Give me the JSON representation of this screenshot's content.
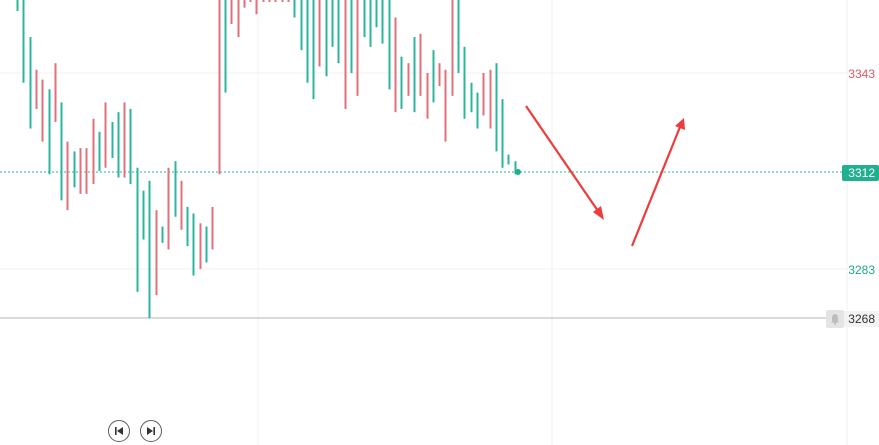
{
  "chart_data": {
    "type": "candlestick",
    "bar_style": "ohlc-vertical-line",
    "y_ticks": [
      "3343",
      "3283"
    ],
    "grid": true,
    "current_price": "3312",
    "reference_price": "3268",
    "colors": {
      "up": "#e0727a",
      "down": "#2ab59c",
      "arrow": "#ef3b3b",
      "current_price_bg": "#20b08f",
      "reference_line": "#b5b5b5",
      "grid": "#f2f2f2",
      "text_up": "#d85a65",
      "text_down": "#20a88f"
    },
    "ylim": [
      3240,
      3390
    ],
    "bars": [
      {
        "high": 3395,
        "low": 3362,
        "dir": "down"
      },
      {
        "high": 3373,
        "low": 3340,
        "dir": "down"
      },
      {
        "high": 3354,
        "low": 3326,
        "dir": "down"
      },
      {
        "high": 3344,
        "low": 3332,
        "dir": "up"
      },
      {
        "high": 3341,
        "low": 3322,
        "dir": "up"
      },
      {
        "high": 3338,
        "low": 3312,
        "dir": "down"
      },
      {
        "high": 3346,
        "low": 3328,
        "dir": "up"
      },
      {
        "high": 3334,
        "low": 3304,
        "dir": "down"
      },
      {
        "high": 3322,
        "low": 3301,
        "dir": "up"
      },
      {
        "high": 3319,
        "low": 3308,
        "dir": "down"
      },
      {
        "high": 3320,
        "low": 3306,
        "dir": "up"
      },
      {
        "high": 3320,
        "low": 3306,
        "dir": "up"
      },
      {
        "high": 3329,
        "low": 3309,
        "dir": "up"
      },
      {
        "high": 3325,
        "low": 3313,
        "dir": "down"
      },
      {
        "high": 3334,
        "low": 3314,
        "dir": "up"
      },
      {
        "high": 3328,
        "low": 3317,
        "dir": "down"
      },
      {
        "high": 3331,
        "low": 3311,
        "dir": "down"
      },
      {
        "high": 3334,
        "low": 3311,
        "dir": "up"
      },
      {
        "high": 3332,
        "low": 3309,
        "dir": "down"
      },
      {
        "high": 3314,
        "low": 3276,
        "dir": "down"
      },
      {
        "high": 3307,
        "low": 3292,
        "dir": "down"
      },
      {
        "high": 3310,
        "low": 3268,
        "dir": "down"
      },
      {
        "high": 3301,
        "low": 3275,
        "dir": "up"
      },
      {
        "high": 3296,
        "low": 3291,
        "dir": "down"
      },
      {
        "high": 3314,
        "low": 3289,
        "dir": "up"
      },
      {
        "high": 3316,
        "low": 3299,
        "dir": "down"
      },
      {
        "high": 3310,
        "low": 3295,
        "dir": "up"
      },
      {
        "high": 3302,
        "low": 3290,
        "dir": "down"
      },
      {
        "high": 3300,
        "low": 3281,
        "dir": "down"
      },
      {
        "high": 3297,
        "low": 3283,
        "dir": "up"
      },
      {
        "high": 3296,
        "low": 3285,
        "dir": "down"
      },
      {
        "high": 3302,
        "low": 3289,
        "dir": "up"
      },
      {
        "high": 3377,
        "low": 3312,
        "dir": "up"
      },
      {
        "high": 3390,
        "low": 3337,
        "dir": "down"
      },
      {
        "high": 3388,
        "low": 3358,
        "dir": "up"
      },
      {
        "high": 3384,
        "low": 3354,
        "dir": "up"
      },
      {
        "high": 3394,
        "low": 3363,
        "dir": "up"
      },
      {
        "high": 3395,
        "low": 3375,
        "dir": "up"
      },
      {
        "high": 3395,
        "low": 3361,
        "dir": "up"
      },
      {
        "high": 3395,
        "low": 3374,
        "dir": "up"
      },
      {
        "high": 3395,
        "low": 3385,
        "dir": "up"
      },
      {
        "high": 3395,
        "low": 3386,
        "dir": "up"
      },
      {
        "high": 3395,
        "low": 3381,
        "dir": "up"
      },
      {
        "high": 3395,
        "low": 3376,
        "dir": "up"
      },
      {
        "high": 3395,
        "low": 3360,
        "dir": "down"
      },
      {
        "high": 3391,
        "low": 3350,
        "dir": "down"
      },
      {
        "high": 3385,
        "low": 3340,
        "dir": "down"
      },
      {
        "high": 3386,
        "low": 3335,
        "dir": "down"
      },
      {
        "high": 3384,
        "low": 3345,
        "dir": "up"
      },
      {
        "high": 3384,
        "low": 3342,
        "dir": "down"
      },
      {
        "high": 3381,
        "low": 3351,
        "dir": "down"
      },
      {
        "high": 3383,
        "low": 3346,
        "dir": "down"
      },
      {
        "high": 3384,
        "low": 3332,
        "dir": "up"
      },
      {
        "high": 3376,
        "low": 3343,
        "dir": "down"
      },
      {
        "high": 3378,
        "low": 3336,
        "dir": "up"
      },
      {
        "high": 3395,
        "low": 3354,
        "dir": "down"
      },
      {
        "high": 3393,
        "low": 3351,
        "dir": "down"
      },
      {
        "high": 3381,
        "low": 3357,
        "dir": "down"
      },
      {
        "high": 3393,
        "low": 3352,
        "dir": "down"
      },
      {
        "high": 3380,
        "low": 3338,
        "dir": "down"
      },
      {
        "high": 3360,
        "low": 3331,
        "dir": "up"
      },
      {
        "high": 3348,
        "low": 3332,
        "dir": "down"
      },
      {
        "high": 3346,
        "low": 3336,
        "dir": "up"
      },
      {
        "high": 3354,
        "low": 3331,
        "dir": "down"
      },
      {
        "high": 3355,
        "low": 3336,
        "dir": "up"
      },
      {
        "high": 3343,
        "low": 3329,
        "dir": "up"
      },
      {
        "high": 3350,
        "low": 3334,
        "dir": "down"
      },
      {
        "high": 3346,
        "low": 3339,
        "dir": "up"
      },
      {
        "high": 3344,
        "low": 3322,
        "dir": "up"
      },
      {
        "high": 3371,
        "low": 3336,
        "dir": "up"
      },
      {
        "high": 3366,
        "low": 3343,
        "dir": "down"
      },
      {
        "high": 3351,
        "low": 3329,
        "dir": "down"
      },
      {
        "high": 3340,
        "low": 3331,
        "dir": "down"
      },
      {
        "high": 3337,
        "low": 3326,
        "dir": "down"
      },
      {
        "high": 3343,
        "low": 3330,
        "dir": "up"
      },
      {
        "high": 3344,
        "low": 3326,
        "dir": "up"
      },
      {
        "high": 3346,
        "low": 3319,
        "dir": "down"
      },
      {
        "high": 3335,
        "low": 3314,
        "dir": "down"
      },
      {
        "high": 3318,
        "low": 3315,
        "dir": "down"
      },
      {
        "high": 3316,
        "low": 3312,
        "dir": "down"
      }
    ]
  },
  "controls": {
    "prev_icon": "skip-back-icon",
    "next_icon": "skip-forward-icon",
    "alert_icon": "bell-icon"
  }
}
